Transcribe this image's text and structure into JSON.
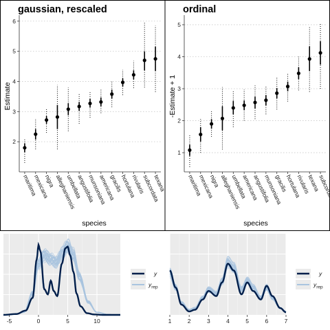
{
  "colors": {
    "point": "#000000",
    "interval": "#000000",
    "y_line": "#011f4b",
    "yrep_line": "#a9c4df",
    "density_panel_bg": "#ebebeb",
    "grid": "#c8c8c8"
  },
  "chart_data": [
    {
      "type": "scatter",
      "subtype": "point-interval",
      "title": "gaussian, rescaled",
      "xlabel": "species",
      "ylabel": "Estimate",
      "ylim": [
        1.0,
        6.2
      ],
      "yticks": [
        "2",
        "3",
        "4",
        "5",
        "6"
      ],
      "grid": "dotted horizontal",
      "categories": [
        "maritima",
        "mexicana",
        "nigra",
        "alleghaniensis",
        "umbellata",
        "angustifolia",
        "munsoniana",
        "americana",
        "gracilis",
        "hortulana",
        "rivularis",
        "subcordata",
        "texana"
      ],
      "values": [
        1.8,
        2.25,
        2.72,
        2.82,
        3.08,
        3.17,
        3.27,
        3.32,
        3.58,
        3.97,
        4.22,
        4.7,
        4.75
      ],
      "inner": [
        [
          1.65,
          1.95
        ],
        [
          2.07,
          2.42
        ],
        [
          2.6,
          2.85
        ],
        [
          2.42,
          3.22
        ],
        [
          2.88,
          3.28
        ],
        [
          3.03,
          3.32
        ],
        [
          3.13,
          3.42
        ],
        [
          3.18,
          3.47
        ],
        [
          3.43,
          3.73
        ],
        [
          3.83,
          4.1
        ],
        [
          4.07,
          4.37
        ],
        [
          4.37,
          5.0
        ],
        [
          4.35,
          5.15
        ]
      ],
      "outer": [
        [
          1.3,
          2.12
        ],
        [
          1.75,
          2.78
        ],
        [
          2.3,
          3.12
        ],
        [
          1.75,
          3.88
        ],
        [
          2.35,
          3.8
        ],
        [
          2.6,
          3.62
        ],
        [
          2.8,
          3.68
        ],
        [
          2.95,
          3.75
        ],
        [
          3.15,
          4.0
        ],
        [
          3.55,
          4.38
        ],
        [
          3.78,
          4.68
        ],
        [
          3.8,
          5.95
        ],
        [
          3.65,
          5.85
        ]
      ]
    },
    {
      "type": "scatter",
      "subtype": "point-interval",
      "title": "ordinal",
      "xlabel": "species",
      "ylabel": "-Estimate + 1",
      "ylim": [
        0.4,
        5.3
      ],
      "yticks": [
        "1",
        "2",
        "3",
        "4",
        "5"
      ],
      "grid": "dotted horizontal",
      "categories": [
        "maritima",
        "mexicana",
        "nigra",
        "alleghaniensis",
        "umbellata",
        "americana",
        "angustifolia",
        "munsoniana",
        "gracilis",
        "hortulana",
        "rivularis",
        "texana",
        "subcordata"
      ],
      "values": [
        1.08,
        1.57,
        1.9,
        2.07,
        2.4,
        2.48,
        2.57,
        2.64,
        2.86,
        3.07,
        3.48,
        3.93,
        4.12
      ],
      "inner": [
        [
          0.9,
          1.25
        ],
        [
          1.35,
          1.8
        ],
        [
          1.75,
          2.05
        ],
        [
          1.7,
          2.45
        ],
        [
          2.2,
          2.62
        ],
        [
          2.33,
          2.63
        ],
        [
          2.38,
          2.75
        ],
        [
          2.48,
          2.8
        ],
        [
          2.7,
          3.02
        ],
        [
          2.92,
          3.22
        ],
        [
          3.3,
          3.67
        ],
        [
          3.55,
          4.32
        ],
        [
          3.75,
          4.48
        ]
      ],
      "outer": [
        [
          0.55,
          1.55
        ],
        [
          1.0,
          2.05
        ],
        [
          1.5,
          2.3
        ],
        [
          1.1,
          3.05
        ],
        [
          1.8,
          2.95
        ],
        [
          2.0,
          2.98
        ],
        [
          2.05,
          3.1
        ],
        [
          2.2,
          3.1
        ],
        [
          2.35,
          3.35
        ],
        [
          2.6,
          3.5
        ],
        [
          2.95,
          4.0
        ],
        [
          2.9,
          4.95
        ],
        [
          3.0,
          5.05
        ]
      ]
    },
    {
      "type": "line",
      "subtype": "density-overlay",
      "xlim": [
        -6,
        14
      ],
      "xticks": [
        "-5",
        "0",
        "5",
        "10"
      ],
      "grid": "on",
      "legend": {
        "placement": "right",
        "entries": [
          "y",
          "y_rep"
        ]
      },
      "series": [
        {
          "name": "y",
          "x": [
            -6,
            -3.8,
            -2.2,
            -1,
            -0.3,
            0,
            0.3,
            1,
            1.6,
            2.1,
            2.6,
            3.2,
            4,
            4.6,
            5,
            5.4,
            6,
            6.5,
            7.2,
            8.3,
            9.5,
            11,
            14
          ],
          "y": [
            0,
            0.01,
            0.05,
            0.2,
            0.65,
            0.82,
            0.75,
            0.3,
            0.24,
            0.4,
            0.28,
            0.22,
            0.6,
            0.78,
            0.8,
            0.7,
            0.5,
            0.25,
            0.1,
            0.02,
            0.005,
            0,
            0
          ]
        },
        {
          "name": "y_rep",
          "x": [
            -6,
            -4,
            -2.5,
            -1,
            0,
            1,
            2,
            3,
            4,
            5,
            6,
            7,
            8.5,
            10,
            12,
            14
          ],
          "y": [
            0,
            0.005,
            0.03,
            0.25,
            0.6,
            0.7,
            0.65,
            0.62,
            0.72,
            0.8,
            0.7,
            0.45,
            0.15,
            0.03,
            0.005,
            0
          ]
        }
      ]
    },
    {
      "type": "line",
      "subtype": "density-overlay",
      "xlim": [
        1,
        7
      ],
      "xticks": [
        "1",
        "2",
        "3",
        "4",
        "5",
        "6",
        "7"
      ],
      "grid": "on",
      "legend": {
        "placement": "right",
        "entries": [
          "y",
          "y_rep"
        ]
      },
      "series": [
        {
          "name": "y",
          "x": [
            1,
            1.3,
            1.6,
            2,
            2.3,
            2.7,
            3,
            3.4,
            3.7,
            4,
            4.3,
            4.7,
            5,
            5.3,
            5.7,
            6,
            6.3,
            6.7,
            7
          ],
          "y": [
            0.52,
            0.32,
            0.12,
            0.04,
            0.06,
            0.18,
            0.28,
            0.22,
            0.38,
            0.6,
            0.52,
            0.24,
            0.38,
            0.28,
            0.18,
            0.34,
            0.22,
            0.08,
            0.03
          ]
        },
        {
          "name": "y_rep",
          "x": [
            1,
            1.3,
            1.6,
            2,
            2.3,
            2.7,
            3,
            3.4,
            3.7,
            4,
            4.3,
            4.7,
            5,
            5.3,
            5.7,
            6,
            6.3,
            6.7,
            7
          ],
          "y": [
            0.5,
            0.32,
            0.14,
            0.06,
            0.08,
            0.2,
            0.3,
            0.25,
            0.4,
            0.62,
            0.55,
            0.3,
            0.4,
            0.32,
            0.2,
            0.32,
            0.2,
            0.08,
            0.04
          ]
        }
      ]
    }
  ]
}
